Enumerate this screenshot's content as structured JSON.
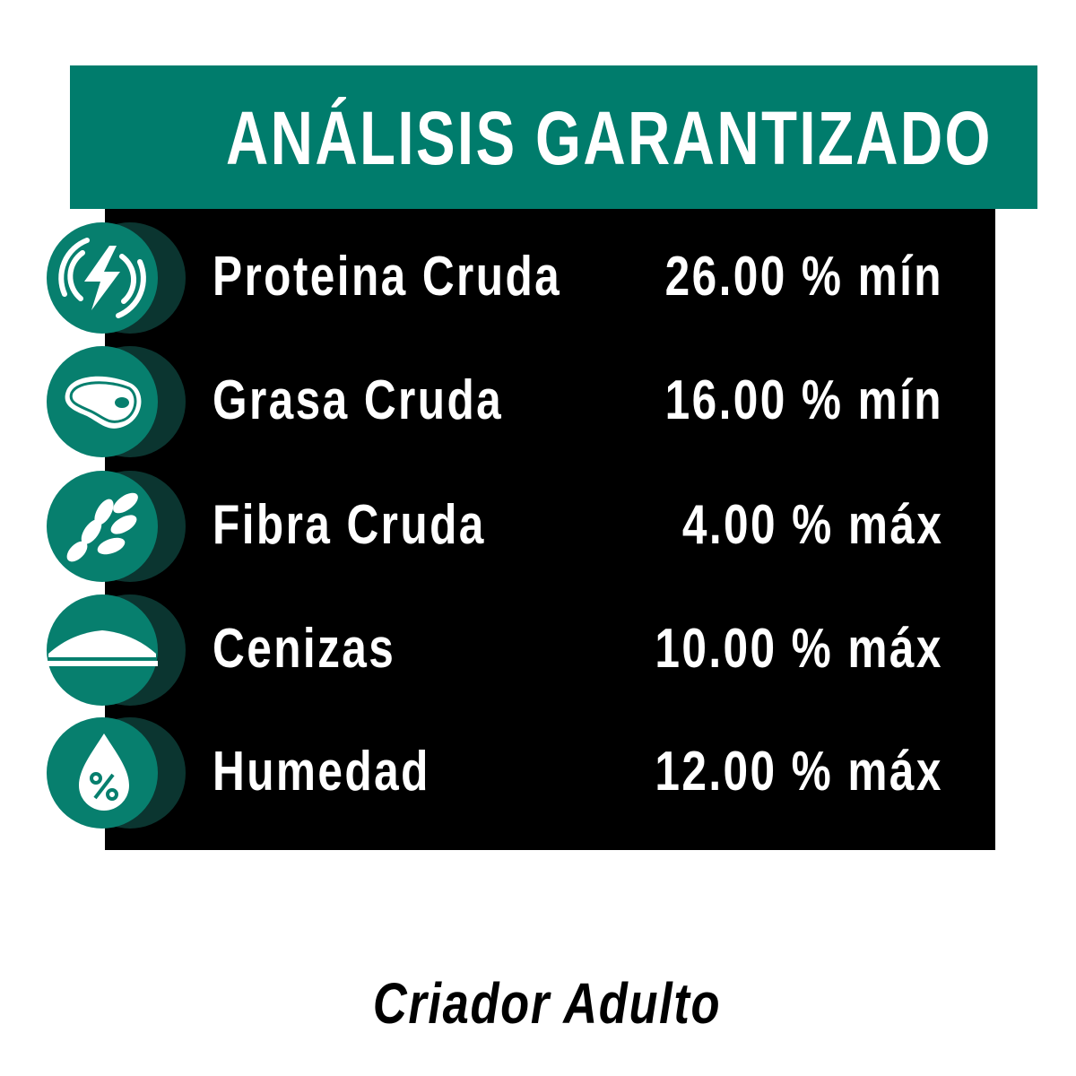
{
  "header": {
    "title": "ANÁLISIS GARANTIZADO"
  },
  "colors": {
    "accent": "#007c6c",
    "panel": "#000000",
    "shadow": "#0b3530"
  },
  "rows": [
    {
      "icon": "energy-bolt-icon",
      "label": "Proteina Cruda",
      "value": "26.00 % mín"
    },
    {
      "icon": "meat-steak-icon",
      "label": "Grasa Cruda",
      "value": "16.00 % mín"
    },
    {
      "icon": "wheat-leaf-icon",
      "label": "Fibra Cruda",
      "value": "4.00 % máx"
    },
    {
      "icon": "ash-pile-icon",
      "label": "Cenizas",
      "value": "10.00 % máx"
    },
    {
      "icon": "water-drop-percent-icon",
      "label": "Humedad",
      "value": "12.00 % máx"
    }
  ],
  "footer": {
    "product": "Criador Adulto"
  }
}
